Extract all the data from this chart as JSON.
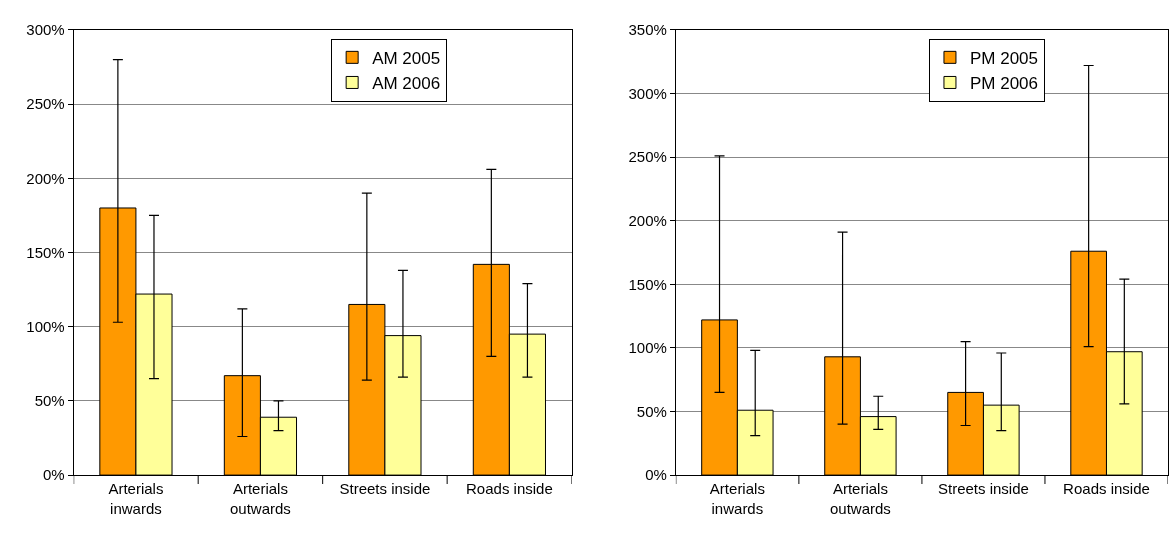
{
  "chart_data": [
    {
      "type": "bar",
      "categories": [
        "Arterials inwards",
        "Arterials outwards",
        "Streets inside",
        "Roads inside"
      ],
      "series": [
        {
          "name": "AM 2005",
          "color": "#ff9900",
          "values": [
            180,
            67,
            115,
            142
          ],
          "errors": [
            [
              103,
              280
            ],
            [
              26,
              112
            ],
            [
              64,
              190
            ],
            [
              80,
              206
            ]
          ]
        },
        {
          "name": "AM 2006",
          "color": "#ffff99",
          "values": [
            122,
            39,
            94,
            95
          ],
          "errors": [
            [
              65,
              175
            ],
            [
              30,
              50
            ],
            [
              66,
              138
            ],
            [
              66,
              129
            ]
          ]
        }
      ],
      "ylim": [
        0,
        300
      ],
      "yticks": [
        {
          "value": 0,
          "label": "0%"
        },
        {
          "value": 50,
          "label": "50%"
        },
        {
          "value": 100,
          "label": "100%"
        },
        {
          "value": 150,
          "label": "150%"
        },
        {
          "value": 200,
          "label": "200%"
        },
        {
          "value": 250,
          "label": "250%"
        },
        {
          "value": 300,
          "label": "300%"
        }
      ],
      "grid": "y",
      "legend": "top right"
    },
    {
      "type": "bar",
      "categories": [
        "Arterials inwards",
        "Arterials outwards",
        "Streets inside",
        "Roads inside"
      ],
      "series": [
        {
          "name": "PM 2005",
          "color": "#ff9900",
          "values": [
            122,
            93,
            65,
            176
          ],
          "errors": [
            [
              65,
              251
            ],
            [
              40,
              191
            ],
            [
              39,
              105
            ],
            [
              101,
              322
            ]
          ]
        },
        {
          "name": "PM 2006",
          "color": "#ffff99",
          "values": [
            51,
            46,
            55,
            97
          ],
          "errors": [
            [
              31,
              98
            ],
            [
              36,
              62
            ],
            [
              35,
              96
            ],
            [
              56,
              154
            ]
          ]
        }
      ],
      "ylim": [
        0,
        350
      ],
      "yticks": [
        {
          "value": 0,
          "label": "0%"
        },
        {
          "value": 50,
          "label": "50%"
        },
        {
          "value": 100,
          "label": "100%"
        },
        {
          "value": 150,
          "label": "150%"
        },
        {
          "value": 200,
          "label": "200%"
        },
        {
          "value": 250,
          "label": "250%"
        },
        {
          "value": 300,
          "label": "300%"
        },
        {
          "value": 350,
          "label": "350%"
        }
      ],
      "grid": "y",
      "legend": "top right"
    }
  ]
}
